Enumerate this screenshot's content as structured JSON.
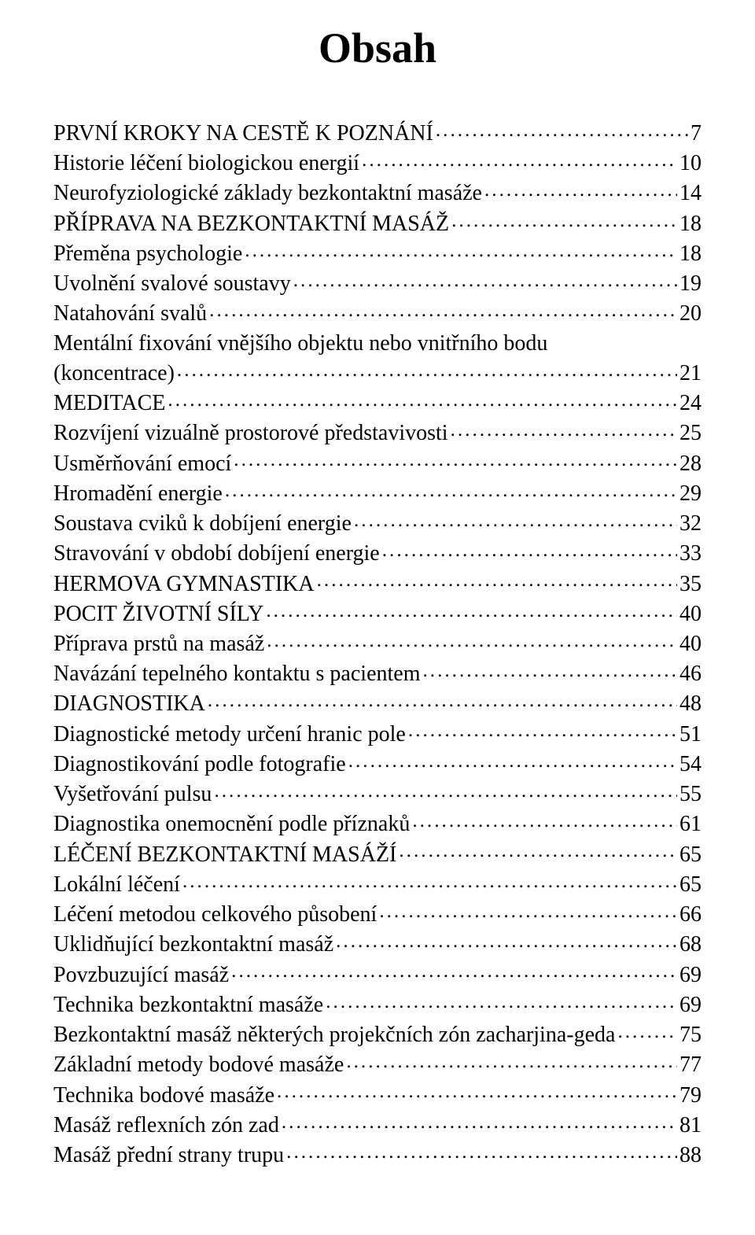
{
  "title": "Obsah",
  "title_fontsize": 54,
  "body_fontsize": 28,
  "colors": {
    "text": "#000000",
    "background": "#ffffff"
  },
  "entries": [
    {
      "label": "PRVNÍ KROKY NA CESTĚ K POZNÁNÍ",
      "page": "7"
    },
    {
      "label": "Historie léčení biologickou energií",
      "page": "10"
    },
    {
      "label": "Neurofyziologické základy bezkontaktní masáže",
      "page": "14"
    },
    {
      "label": "PŘÍPRAVA NA BEZKONTAKTNÍ MASÁŽ",
      "page": "18"
    },
    {
      "label": "Přeměna psychologie",
      "page": "18"
    },
    {
      "label": "Uvolnění svalové soustavy",
      "page": "19"
    },
    {
      "label": "Natahování svalů",
      "page": "20"
    },
    {
      "label": "Mentální fixování vnějšího objektu nebo vnitřního bodu",
      "page": ""
    },
    {
      "label": "(koncentrace)",
      "page": "21"
    },
    {
      "label": "MEDITACE",
      "page": "24"
    },
    {
      "label": "Rozvíjení vizuálně prostorové představivosti",
      "page": "25"
    },
    {
      "label": "Usměrňování emocí",
      "page": "28"
    },
    {
      "label": "Hromadění energie",
      "page": "29"
    },
    {
      "label": "Soustava cviků k dobíjení energie",
      "page": "32"
    },
    {
      "label": "Stravování v období dobíjení energie",
      "page": "33"
    },
    {
      "label": "HERMOVA GYMNASTIKA",
      "page": "35"
    },
    {
      "label": "POCIT ŽIVOTNÍ SÍLY",
      "page": "40"
    },
    {
      "label": "Příprava prstů na masáž",
      "page": "40"
    },
    {
      "label": "Navázání tepelného kontaktu s pacientem",
      "page": "46"
    },
    {
      "label": "DIAGNOSTIKA",
      "page": "48"
    },
    {
      "label": "Diagnostické metody určení hranic pole",
      "page": "51"
    },
    {
      "label": "Diagnostikování podle fotografie",
      "page": "54"
    },
    {
      "label": "Vyšetřování pulsu",
      "page": "55"
    },
    {
      "label": "Diagnostika onemocnění podle příznaků",
      "page": "61"
    },
    {
      "label": "LÉČENÍ BEZKONTAKTNÍ MASÁŽÍ",
      "page": "65"
    },
    {
      "label": "Lokální léčení",
      "page": "65"
    },
    {
      "label": "Léčení metodou celkového působení",
      "page": "66"
    },
    {
      "label": "Uklidňující bezkontaktní masáž",
      "page": "68"
    },
    {
      "label": "Povzbuzující  masáž",
      "page": "69"
    },
    {
      "label": "Technika bezkontaktní masáže",
      "page": "69"
    },
    {
      "label": "Bezkontaktní masáž některých projekčních zón zacharjina-geda",
      "page": "75"
    },
    {
      "label": "Základní metody bodové masáže",
      "page": "77"
    },
    {
      "label": "Technika bodové masáže",
      "page": "79"
    },
    {
      "label": "Masáž reflexních zón zad",
      "page": "81"
    },
    {
      "label": "Masáž přední strany trupu",
      "page": "88"
    }
  ]
}
